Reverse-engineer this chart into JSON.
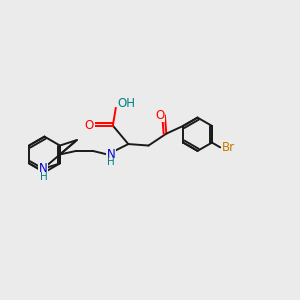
{
  "bg_color": "#ebebeb",
  "bond_color": "#1a1a1a",
  "bond_width": 1.4,
  "atom_colors": {
    "O": "#ff0000",
    "N": "#0000cc",
    "H": "#008080",
    "Br": "#cc7700"
  },
  "font_size": 8.5,
  "xlim": [
    0,
    10
  ],
  "ylim": [
    0,
    10
  ]
}
